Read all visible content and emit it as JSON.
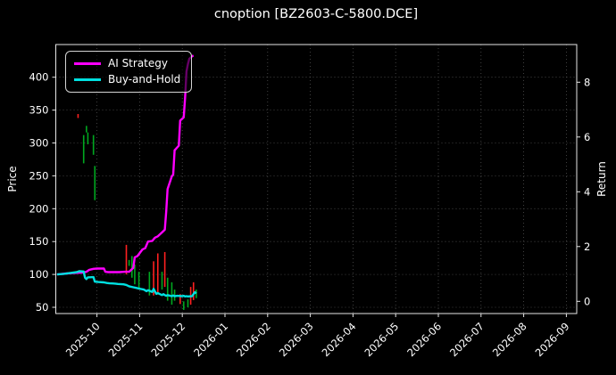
{
  "window": {
    "title": "cnoption [BZ2603-C-5800.DCE]"
  },
  "colors": {
    "ai_strategy": "#ff00ff",
    "buy_and_hold": "#00e0e0",
    "candle_up": "#00a820",
    "candle_down": "#ff2020",
    "grid": "#4f4f4f",
    "axis": "#e6e6e6",
    "text": "#ffffff",
    "background": "#000000"
  },
  "chart_data": {
    "type": "line",
    "title": "cnoption [BZ2603-C-5800.DCE]",
    "grid": true,
    "background": "#000000",
    "left_axis": {
      "label": "Price",
      "ticks": [
        50,
        100,
        150,
        200,
        250,
        300,
        350,
        400
      ],
      "range": [
        40,
        450
      ]
    },
    "right_axis": {
      "label": "Return",
      "ticks": [
        0,
        2,
        4,
        6,
        8
      ],
      "range": [
        -0.45,
        9.4
      ]
    },
    "x_axis": {
      "label": "",
      "tick_labels": [
        "2025-10",
        "2025-11",
        "2025-12",
        "2026-01",
        "2026-02",
        "2026-03",
        "2026-04",
        "2026-05",
        "2026-06",
        "2026-07",
        "2026-08",
        "2026-09"
      ],
      "rotation": 45
    },
    "legend": {
      "position": "upper-left",
      "entries": [
        {
          "label": "AI Strategy",
          "color": "#ff00ff"
        },
        {
          "label": "Buy-and-Hold",
          "color": "#00e0e0"
        }
      ]
    },
    "series": [
      {
        "name": "AI Strategy",
        "color": "#ff00ff",
        "axis": "left",
        "points": [
          [
            "2025-09-03",
            100
          ],
          [
            "2025-09-10",
            101.5
          ],
          [
            "2025-09-17",
            102.5
          ],
          [
            "2025-09-22",
            103
          ],
          [
            "2025-09-24",
            104
          ],
          [
            "2025-09-26",
            107
          ],
          [
            "2025-09-29",
            108.5
          ],
          [
            "2025-10-01",
            109
          ],
          [
            "2025-10-06",
            109
          ],
          [
            "2025-10-07",
            104
          ],
          [
            "2025-10-09",
            103.5
          ],
          [
            "2025-10-14",
            103.5
          ],
          [
            "2025-10-17",
            103.5
          ],
          [
            "2025-10-21",
            104
          ],
          [
            "2025-10-24",
            104
          ],
          [
            "2025-10-27",
            110
          ],
          [
            "2025-10-28",
            126
          ],
          [
            "2025-10-30",
            128
          ],
          [
            "2025-11-03",
            138
          ],
          [
            "2025-11-05",
            140
          ],
          [
            "2025-11-07",
            150
          ],
          [
            "2025-11-10",
            151
          ],
          [
            "2025-11-12",
            156
          ],
          [
            "2025-11-14",
            158
          ],
          [
            "2025-11-17",
            164
          ],
          [
            "2025-11-19",
            168
          ],
          [
            "2025-11-20",
            196
          ],
          [
            "2025-11-21",
            230
          ],
          [
            "2025-11-24",
            249
          ],
          [
            "2025-11-25",
            252
          ],
          [
            "2025-11-26",
            289
          ],
          [
            "2025-11-27",
            291
          ],
          [
            "2025-11-29",
            296
          ],
          [
            "2025-11-30",
            334
          ],
          [
            "2025-12-02",
            339
          ],
          [
            "2025-12-03",
            368
          ],
          [
            "2025-12-04",
            409
          ],
          [
            "2025-12-05",
            420
          ],
          [
            "2025-12-06",
            428
          ],
          [
            "2025-12-08",
            432
          ],
          [
            "2025-12-09",
            433
          ]
        ]
      },
      {
        "name": "Buy-and-Hold",
        "color": "#00e0e0",
        "axis": "left",
        "points": [
          [
            "2025-09-03",
            100
          ],
          [
            "2025-09-08",
            101
          ],
          [
            "2025-09-12",
            102
          ],
          [
            "2025-09-17",
            103.5
          ],
          [
            "2025-09-19",
            105
          ],
          [
            "2025-09-22",
            104.5
          ],
          [
            "2025-09-23",
            95
          ],
          [
            "2025-09-24",
            93
          ],
          [
            "2025-09-25",
            95.5
          ],
          [
            "2025-09-29",
            96
          ],
          [
            "2025-09-30",
            89
          ],
          [
            "2025-10-02",
            88.5
          ],
          [
            "2025-10-06",
            88
          ],
          [
            "2025-10-08",
            87
          ],
          [
            "2025-10-10",
            86.5
          ],
          [
            "2025-10-14",
            86
          ],
          [
            "2025-10-16",
            85.5
          ],
          [
            "2025-10-20",
            85
          ],
          [
            "2025-10-22",
            84
          ],
          [
            "2025-10-24",
            82
          ],
          [
            "2025-10-27",
            80.5
          ],
          [
            "2025-10-29",
            79.5
          ],
          [
            "2025-10-31",
            78.5
          ],
          [
            "2025-11-04",
            77
          ],
          [
            "2025-11-06",
            74.5
          ],
          [
            "2025-11-07",
            76
          ],
          [
            "2025-11-10",
            73.5
          ],
          [
            "2025-11-11",
            78
          ],
          [
            "2025-11-12",
            74
          ],
          [
            "2025-11-13",
            70.5
          ],
          [
            "2025-11-14",
            71.5
          ],
          [
            "2025-11-17",
            68.5
          ],
          [
            "2025-11-18",
            70
          ],
          [
            "2025-11-19",
            68.5
          ],
          [
            "2025-11-20",
            67.5
          ],
          [
            "2025-11-21",
            68.5
          ],
          [
            "2025-11-24",
            67
          ],
          [
            "2025-11-25",
            68
          ],
          [
            "2025-11-26",
            67
          ],
          [
            "2025-11-28",
            67.5
          ],
          [
            "2025-12-01",
            67
          ],
          [
            "2025-12-02",
            67.5
          ],
          [
            "2025-12-03",
            66.5
          ],
          [
            "2025-12-04",
            67
          ],
          [
            "2025-12-05",
            66.5
          ],
          [
            "2025-12-08",
            67
          ],
          [
            "2025-12-09",
            70
          ],
          [
            "2025-12-10",
            73
          ],
          [
            "2025-12-11",
            71
          ]
        ]
      }
    ],
    "candles": [
      [
        "2025-09-18",
        338,
        344,
        "red"
      ],
      [
        "2025-09-22",
        269,
        312,
        "green"
      ],
      [
        "2025-09-24",
        316,
        326,
        "green"
      ],
      [
        "2025-09-25",
        298,
        316,
        "green"
      ],
      [
        "2025-09-29",
        282,
        312,
        "green"
      ],
      [
        "2025-09-30",
        213,
        265,
        "green"
      ],
      [
        "2025-10-22",
        100,
        145,
        "red"
      ],
      [
        "2025-10-24",
        113,
        122,
        "green"
      ],
      [
        "2025-10-26",
        95,
        128,
        "green"
      ],
      [
        "2025-10-28",
        85,
        115,
        "green"
      ],
      [
        "2025-10-31",
        77,
        104,
        "green"
      ],
      [
        "2025-11-08",
        68,
        104,
        "green"
      ],
      [
        "2025-11-11",
        68,
        120,
        "red"
      ],
      [
        "2025-11-14",
        70,
        132,
        "red"
      ],
      [
        "2025-11-17",
        77,
        104,
        "green"
      ],
      [
        "2025-11-19",
        81,
        134,
        "red"
      ],
      [
        "2025-11-21",
        60,
        95,
        "green"
      ],
      [
        "2025-11-24",
        54,
        88,
        "green"
      ],
      [
        "2025-11-26",
        60,
        77,
        "green"
      ],
      [
        "2025-11-30",
        55,
        70,
        "red"
      ],
      [
        "2025-12-02",
        46,
        59,
        "green"
      ],
      [
        "2025-12-05",
        50,
        62,
        "green"
      ],
      [
        "2025-12-07",
        54,
        81,
        "red"
      ],
      [
        "2025-12-09",
        61,
        88,
        "red"
      ],
      [
        "2025-12-11",
        64,
        77,
        "green"
      ]
    ]
  }
}
